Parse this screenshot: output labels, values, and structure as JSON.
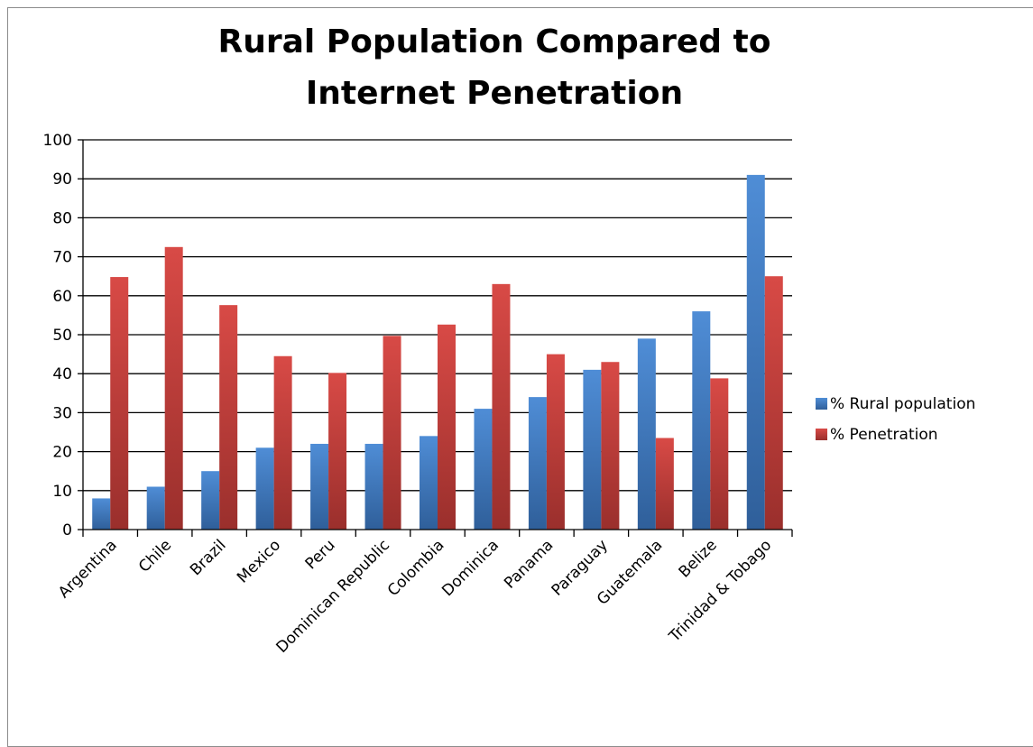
{
  "chart_data": {
    "type": "bar",
    "title_lines": [
      "Rural Population Compared to",
      "Internet Penetration"
    ],
    "categories": [
      "Argentina",
      "Chile",
      "Brazil",
      "Mexico",
      "Peru",
      "Dominican Republic",
      "Colombia",
      "Dominica",
      "Panama",
      "Paraguay",
      "Guatemala",
      "Belize",
      "Trinidad & Tobago"
    ],
    "series": [
      {
        "name": "% Rural population",
        "color": "#4a7ebf",
        "values": [
          8,
          11,
          15,
          21,
          22,
          22,
          24,
          31,
          34,
          41,
          49,
          56,
          91
        ]
      },
      {
        "name": "% Penetration",
        "color": "#c0504d",
        "values": [
          64.8,
          72.5,
          57.6,
          44.5,
          40.2,
          49.7,
          52.6,
          63,
          45,
          43,
          23.5,
          38.8,
          65
        ]
      }
    ],
    "ylim": [
      0,
      100
    ],
    "yticks": [
      0,
      10,
      20,
      30,
      40,
      50,
      60,
      70,
      80,
      90,
      100
    ],
    "grid": true,
    "legend_position": "right"
  }
}
